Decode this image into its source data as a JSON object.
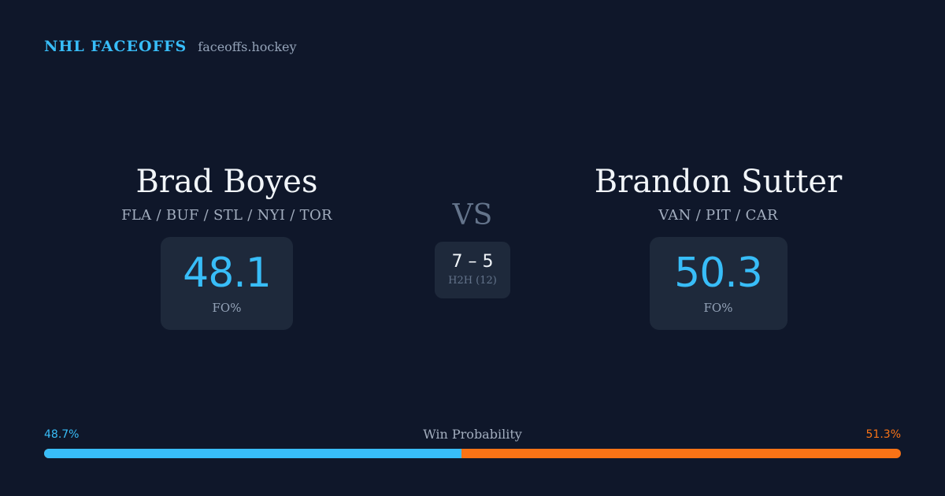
{
  "brand": {
    "title": "NHL FACEOFFS",
    "site": "faceoffs.hockey"
  },
  "player_left": {
    "name": "Brad Boyes",
    "teams": "FLA / BUF / STL / NYI / TOR",
    "stat_value": "48.1",
    "stat_label": "FO%"
  },
  "player_right": {
    "name": "Brandon Sutter",
    "teams": "VAN / PIT / CAR",
    "stat_value": "50.3",
    "stat_label": "FO%"
  },
  "versus": {
    "label": "VS",
    "h2h_score": "7 – 5",
    "h2h_label": "H2H (12)"
  },
  "win_probability": {
    "title": "Win Probability",
    "left_label": "48.7%",
    "right_label": "51.3%",
    "left_fraction": 0.487,
    "colors": {
      "left": "#38bdf8",
      "right": "#f97316"
    }
  }
}
